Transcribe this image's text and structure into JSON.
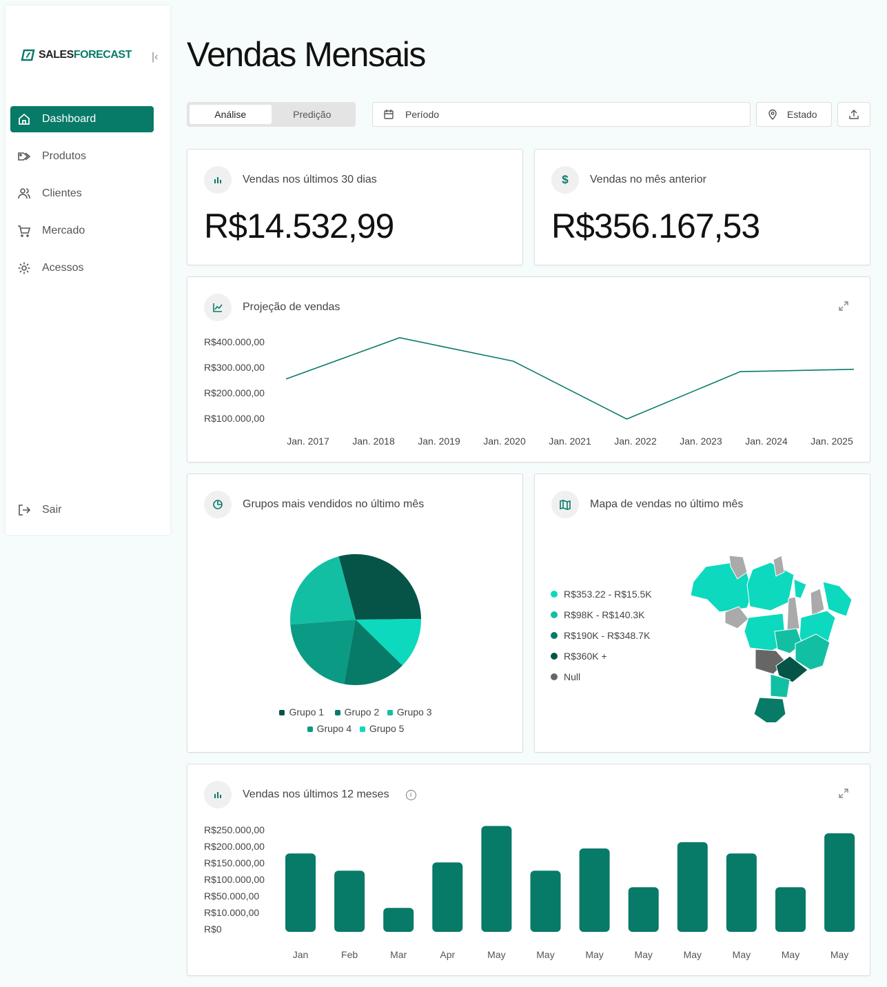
{
  "brand": {
    "part1": "SALES",
    "part2": "FORECAST",
    "accent": "#087a68"
  },
  "sidebar": {
    "items": [
      {
        "label": "Dashboard",
        "icon": "home-icon"
      },
      {
        "label": "Produtos",
        "icon": "tags-icon"
      },
      {
        "label": "Clientes",
        "icon": "users-icon"
      },
      {
        "label": "Mercado",
        "icon": "cart-icon"
      },
      {
        "label": "Acessos",
        "icon": "gear-icon"
      }
    ],
    "logout": "Sair"
  },
  "header": {
    "title": "Vendas Mensais",
    "tabs": [
      "Análise",
      "Predição"
    ],
    "period_placeholder": "Período",
    "state_label": "Estado"
  },
  "kpis": [
    {
      "label": "Vendas nos últimos 30 dias",
      "value": "R$14.532,99"
    },
    {
      "label": "Vendas no mês anterior",
      "value": "R$356.167,53"
    }
  ],
  "chart_data": [
    {
      "type": "line",
      "title": "Projeção de vendas",
      "y_ticks": [
        "R$400.000,00",
        "R$300.000,00",
        "R$200.000,00",
        "R$100.000,00"
      ],
      "x_ticks": [
        "Jan. 2017",
        "Jan. 2018",
        "Jan. 2019",
        "Jan. 2020",
        "Jan. 2021",
        "Jan. 2022",
        "Jan. 2023",
        "Jan. 2024",
        "Jan. 2025"
      ],
      "x": [
        2017,
        2018.6,
        2020.2,
        2021.8,
        2023.4,
        2025
      ],
      "values": [
        257000,
        419000,
        327000,
        100000,
        286000,
        295000
      ],
      "color": "#087a68"
    },
    {
      "type": "pie",
      "title": "Grupos mais vendidos no último mês",
      "slices": [
        {
          "name": "Grupo 1",
          "value": 29,
          "color": "#055447"
        },
        {
          "name": "Grupo 5",
          "value": 12.5,
          "color": "#0cd9bd"
        },
        {
          "name": "Grupo 2",
          "value": 15.5,
          "color": "#077a68"
        },
        {
          "name": "Grupo 4",
          "value": 21,
          "color": "#0b9a83"
        },
        {
          "name": "Grupo 3",
          "value": 22,
          "color": "#12bfa3"
        }
      ],
      "legend": [
        "Grupo 1",
        "Grupo 2",
        "Grupo 3",
        "Grupo 4",
        "Grupo 5"
      ]
    },
    {
      "type": "bar",
      "title": "Vendas nos últimos 12 meses",
      "y_ticks": [
        {
          "label": "R$250.000,00",
          "v": 250000
        },
        {
          "label": "R$200.000,00",
          "v": 200000
        },
        {
          "label": "R$150.000,00",
          "v": 150000
        },
        {
          "label": "R$100.000,00",
          "v": 100000
        },
        {
          "label": "R$50.000,00",
          "v": 50000
        },
        {
          "label": "R$10.000,00",
          "v": 10000
        },
        {
          "label": "R$0",
          "v": 0
        }
      ],
      "categories": [
        "Jan",
        "Feb",
        "Mar",
        "Apr",
        "May",
        "May",
        "May",
        "May",
        "May",
        "May",
        "May",
        "May"
      ],
      "values": [
        187000,
        135000,
        28000,
        160000,
        270000,
        135000,
        202000,
        85000,
        221000,
        187000,
        85000,
        248000
      ],
      "color": "#087a68"
    }
  ],
  "map": {
    "title": "Mapa de vendas no último mês",
    "legend": [
      {
        "label": "R$353.22 - R$15.5K",
        "color": "#0cd9bd"
      },
      {
        "label": "R$98K - R$140.3K",
        "color": "#12bfa3"
      },
      {
        "label": "R$190K - R$348.7K",
        "color": "#087a68"
      },
      {
        "label": "R$360K +",
        "color": "#055447"
      },
      {
        "label": "Null",
        "color": "#666666"
      }
    ]
  }
}
